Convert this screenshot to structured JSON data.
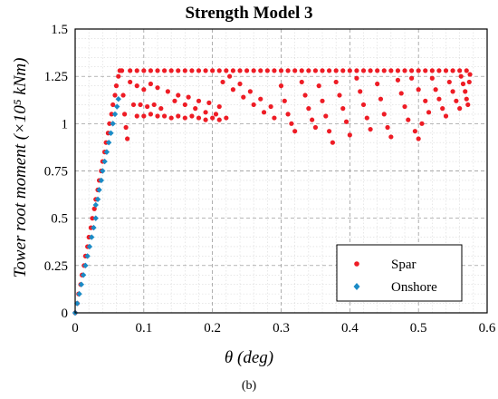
{
  "chart_data": {
    "type": "scatter",
    "title": "Strength Model 3",
    "xlabel": "θ (deg)",
    "ylabel": "Tower root moment (×10⁵ kNm)",
    "xlim": [
      0,
      0.6
    ],
    "ylim": [
      0,
      1.5
    ],
    "xticks": [
      "0",
      "0.1",
      "0.2",
      "0.3",
      "0.4",
      "0.5",
      "0.6"
    ],
    "yticks": [
      "0",
      "0.25",
      "0.5",
      "0.75",
      "1",
      "1.25",
      "1.5"
    ],
    "grid": true,
    "legend_position": "bottom-right",
    "caption": "(b)",
    "series": [
      {
        "name": "Spar",
        "color": "#ee1c25",
        "marker": "circle",
        "points": [
          [
            0.0,
            0.0
          ],
          [
            0.003,
            0.05
          ],
          [
            0.005,
            0.1
          ],
          [
            0.008,
            0.15
          ],
          [
            0.01,
            0.2
          ],
          [
            0.013,
            0.25
          ],
          [
            0.015,
            0.3
          ],
          [
            0.018,
            0.35
          ],
          [
            0.02,
            0.4
          ],
          [
            0.023,
            0.45
          ],
          [
            0.025,
            0.5
          ],
          [
            0.028,
            0.55
          ],
          [
            0.03,
            0.6
          ],
          [
            0.033,
            0.65
          ],
          [
            0.035,
            0.7
          ],
          [
            0.038,
            0.75
          ],
          [
            0.04,
            0.8
          ],
          [
            0.043,
            0.85
          ],
          [
            0.045,
            0.9
          ],
          [
            0.048,
            0.95
          ],
          [
            0.05,
            1.0
          ],
          [
            0.053,
            1.05
          ],
          [
            0.055,
            1.1
          ],
          [
            0.058,
            1.15
          ],
          [
            0.06,
            1.2
          ],
          [
            0.063,
            1.25
          ],
          [
            0.065,
            1.28
          ],
          [
            0.068,
            1.28
          ],
          [
            0.08,
            1.28
          ],
          [
            0.09,
            1.28
          ],
          [
            0.1,
            1.28
          ],
          [
            0.11,
            1.28
          ],
          [
            0.12,
            1.28
          ],
          [
            0.13,
            1.28
          ],
          [
            0.14,
            1.28
          ],
          [
            0.15,
            1.28
          ],
          [
            0.16,
            1.28
          ],
          [
            0.17,
            1.28
          ],
          [
            0.18,
            1.28
          ],
          [
            0.19,
            1.28
          ],
          [
            0.2,
            1.28
          ],
          [
            0.21,
            1.28
          ],
          [
            0.22,
            1.28
          ],
          [
            0.23,
            1.28
          ],
          [
            0.24,
            1.28
          ],
          [
            0.25,
            1.28
          ],
          [
            0.26,
            1.28
          ],
          [
            0.27,
            1.28
          ],
          [
            0.28,
            1.28
          ],
          [
            0.29,
            1.28
          ],
          [
            0.3,
            1.28
          ],
          [
            0.31,
            1.28
          ],
          [
            0.32,
            1.28
          ],
          [
            0.33,
            1.28
          ],
          [
            0.34,
            1.28
          ],
          [
            0.35,
            1.28
          ],
          [
            0.36,
            1.28
          ],
          [
            0.37,
            1.28
          ],
          [
            0.38,
            1.28
          ],
          [
            0.39,
            1.28
          ],
          [
            0.4,
            1.28
          ],
          [
            0.41,
            1.28
          ],
          [
            0.42,
            1.28
          ],
          [
            0.43,
            1.28
          ],
          [
            0.44,
            1.28
          ],
          [
            0.45,
            1.28
          ],
          [
            0.46,
            1.28
          ],
          [
            0.47,
            1.28
          ],
          [
            0.48,
            1.28
          ],
          [
            0.49,
            1.28
          ],
          [
            0.5,
            1.28
          ],
          [
            0.51,
            1.28
          ],
          [
            0.52,
            1.28
          ],
          [
            0.53,
            1.28
          ],
          [
            0.54,
            1.28
          ],
          [
            0.55,
            1.28
          ],
          [
            0.56,
            1.28
          ],
          [
            0.57,
            1.28
          ],
          [
            0.07,
            1.15
          ],
          [
            0.072,
            1.05
          ],
          [
            0.074,
            0.98
          ],
          [
            0.076,
            0.92
          ],
          [
            0.08,
            1.22
          ],
          [
            0.09,
            1.2
          ],
          [
            0.1,
            1.18
          ],
          [
            0.11,
            1.21
          ],
          [
            0.12,
            1.19
          ],
          [
            0.085,
            1.1
          ],
          [
            0.095,
            1.1
          ],
          [
            0.105,
            1.09
          ],
          [
            0.115,
            1.1
          ],
          [
            0.125,
            1.08
          ],
          [
            0.09,
            1.04
          ],
          [
            0.1,
            1.04
          ],
          [
            0.11,
            1.05
          ],
          [
            0.12,
            1.04
          ],
          [
            0.13,
            1.04
          ],
          [
            0.14,
            1.03
          ],
          [
            0.15,
            1.04
          ],
          [
            0.16,
            1.03
          ],
          [
            0.17,
            1.04
          ],
          [
            0.18,
            1.03
          ],
          [
            0.19,
            1.02
          ],
          [
            0.2,
            1.03
          ],
          [
            0.21,
            1.02
          ],
          [
            0.22,
            1.03
          ],
          [
            0.135,
            1.17
          ],
          [
            0.15,
            1.15
          ],
          [
            0.165,
            1.14
          ],
          [
            0.18,
            1.12
          ],
          [
            0.195,
            1.11
          ],
          [
            0.21,
            1.09
          ],
          [
            0.145,
            1.12
          ],
          [
            0.16,
            1.1
          ],
          [
            0.175,
            1.08
          ],
          [
            0.19,
            1.06
          ],
          [
            0.205,
            1.05
          ],
          [
            0.215,
            1.22
          ],
          [
            0.23,
            1.18
          ],
          [
            0.245,
            1.14
          ],
          [
            0.26,
            1.1
          ],
          [
            0.275,
            1.06
          ],
          [
            0.29,
            1.03
          ],
          [
            0.225,
            1.25
          ],
          [
            0.24,
            1.21
          ],
          [
            0.255,
            1.17
          ],
          [
            0.27,
            1.13
          ],
          [
            0.285,
            1.09
          ],
          [
            0.3,
            1.2
          ],
          [
            0.305,
            1.12
          ],
          [
            0.31,
            1.05
          ],
          [
            0.315,
            1.0
          ],
          [
            0.32,
            0.96
          ],
          [
            0.33,
            1.22
          ],
          [
            0.335,
            1.15
          ],
          [
            0.34,
            1.08
          ],
          [
            0.345,
            1.02
          ],
          [
            0.35,
            0.98
          ],
          [
            0.355,
            1.2
          ],
          [
            0.36,
            1.12
          ],
          [
            0.365,
            1.04
          ],
          [
            0.37,
            0.96
          ],
          [
            0.375,
            0.9
          ],
          [
            0.38,
            1.22
          ],
          [
            0.385,
            1.15
          ],
          [
            0.39,
            1.08
          ],
          [
            0.395,
            1.01
          ],
          [
            0.4,
            0.94
          ],
          [
            0.41,
            1.24
          ],
          [
            0.415,
            1.17
          ],
          [
            0.42,
            1.1
          ],
          [
            0.425,
            1.03
          ],
          [
            0.43,
            0.97
          ],
          [
            0.44,
            1.21
          ],
          [
            0.445,
            1.13
          ],
          [
            0.45,
            1.05
          ],
          [
            0.455,
            0.98
          ],
          [
            0.46,
            0.93
          ],
          [
            0.47,
            1.23
          ],
          [
            0.475,
            1.16
          ],
          [
            0.48,
            1.09
          ],
          [
            0.485,
            1.02
          ],
          [
            0.495,
            0.96
          ],
          [
            0.5,
            0.92
          ],
          [
            0.505,
            1.0
          ],
          [
            0.49,
            1.24
          ],
          [
            0.5,
            1.18
          ],
          [
            0.51,
            1.12
          ],
          [
            0.515,
            1.06
          ],
          [
            0.52,
            1.24
          ],
          [
            0.525,
            1.18
          ],
          [
            0.53,
            1.13
          ],
          [
            0.535,
            1.08
          ],
          [
            0.54,
            1.04
          ],
          [
            0.545,
            1.22
          ],
          [
            0.55,
            1.17
          ],
          [
            0.555,
            1.12
          ],
          [
            0.56,
            1.08
          ],
          [
            0.562,
            1.25
          ],
          [
            0.565,
            1.21
          ],
          [
            0.568,
            1.17
          ],
          [
            0.57,
            1.13
          ],
          [
            0.572,
            1.1
          ],
          [
            0.574,
            1.22
          ],
          [
            0.575,
            1.26
          ]
        ]
      },
      {
        "name": "Onshore",
        "color": "#1b8bc6",
        "marker": "diamond",
        "points": [
          [
            0.0,
            0.0
          ],
          [
            0.003,
            0.05
          ],
          [
            0.006,
            0.1
          ],
          [
            0.009,
            0.15
          ],
          [
            0.012,
            0.2
          ],
          [
            0.015,
            0.25
          ],
          [
            0.018,
            0.3
          ],
          [
            0.021,
            0.35
          ],
          [
            0.024,
            0.4
          ],
          [
            0.027,
            0.45
          ],
          [
            0.03,
            0.5
          ],
          [
            0.03,
            0.57
          ],
          [
            0.033,
            0.6
          ],
          [
            0.035,
            0.65
          ],
          [
            0.038,
            0.7
          ],
          [
            0.04,
            0.75
          ],
          [
            0.043,
            0.8
          ],
          [
            0.046,
            0.85
          ],
          [
            0.049,
            0.9
          ],
          [
            0.052,
            0.95
          ],
          [
            0.055,
            1.0
          ],
          [
            0.058,
            1.05
          ],
          [
            0.061,
            1.09
          ],
          [
            0.063,
            1.13
          ]
        ]
      }
    ]
  }
}
